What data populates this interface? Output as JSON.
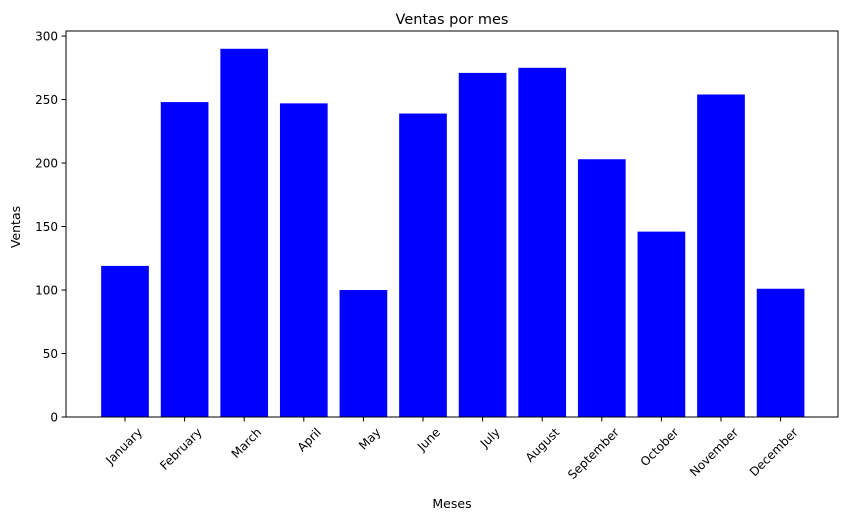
{
  "chart_data": {
    "type": "bar",
    "title": "Ventas por mes",
    "xlabel": "Meses",
    "ylabel": "Ventas",
    "categories": [
      "January",
      "February",
      "March",
      "April",
      "May",
      "June",
      "July",
      "August",
      "September",
      "October",
      "November",
      "December"
    ],
    "values": [
      119,
      248,
      290,
      247,
      100,
      239,
      271,
      275,
      203,
      146,
      254,
      101
    ],
    "ylim": [
      0,
      304
    ],
    "yticks": [
      0,
      50,
      100,
      150,
      200,
      250,
      300
    ],
    "bar_color": "#0000ff",
    "grid": false,
    "legend": "none"
  }
}
